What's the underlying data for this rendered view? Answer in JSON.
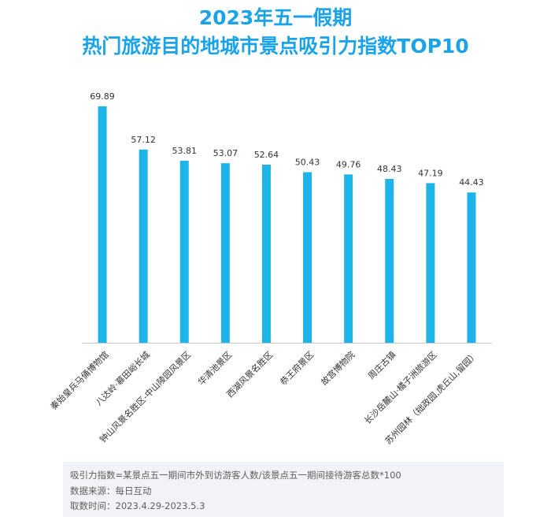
{
  "title_line1": "2023年五一假期",
  "title_line2": "热门旅游目的地城市景点吸引力指数TOP10",
  "colors": {
    "title": "#1aa3e8",
    "bar": "#1eb4ea",
    "label": "#333333",
    "axis": "#c8c8c8"
  },
  "chart_data": {
    "type": "bar",
    "title": "2023年五一假期 热门旅游目的地城市景点吸引力指数TOP10",
    "xlabel": "",
    "ylabel": "",
    "ylim": [
      0,
      75
    ],
    "categories": [
      "秦始皇兵马俑博物馆",
      "八达岭·慕田峪长城",
      "钟山风景名胜区-中山陵园风景区",
      "华清池景区",
      "西湖风景名胜区",
      "恭王府景区",
      "故宫博物院",
      "周庄古镇",
      "长沙岳麓山·橘子洲旅游区",
      "苏州园林（拙政园,虎丘山,留园）"
    ],
    "values": [
      69.89,
      57.12,
      53.81,
      53.07,
      52.64,
      50.43,
      49.76,
      48.43,
      47.19,
      44.43
    ],
    "value_labels": [
      "69.89",
      "57.12",
      "53.81",
      "53.07",
      "52.64",
      "50.43",
      "49.76",
      "48.43",
      "47.19",
      "44.43"
    ]
  },
  "notes": {
    "definition": "吸引力指数=某景点五一期间市外到访游客人数/该景点五一期间接待游客总数*100",
    "source": "数据来源：每日互动",
    "period": "取数时间：2023.4.29-2023.5.3"
  }
}
